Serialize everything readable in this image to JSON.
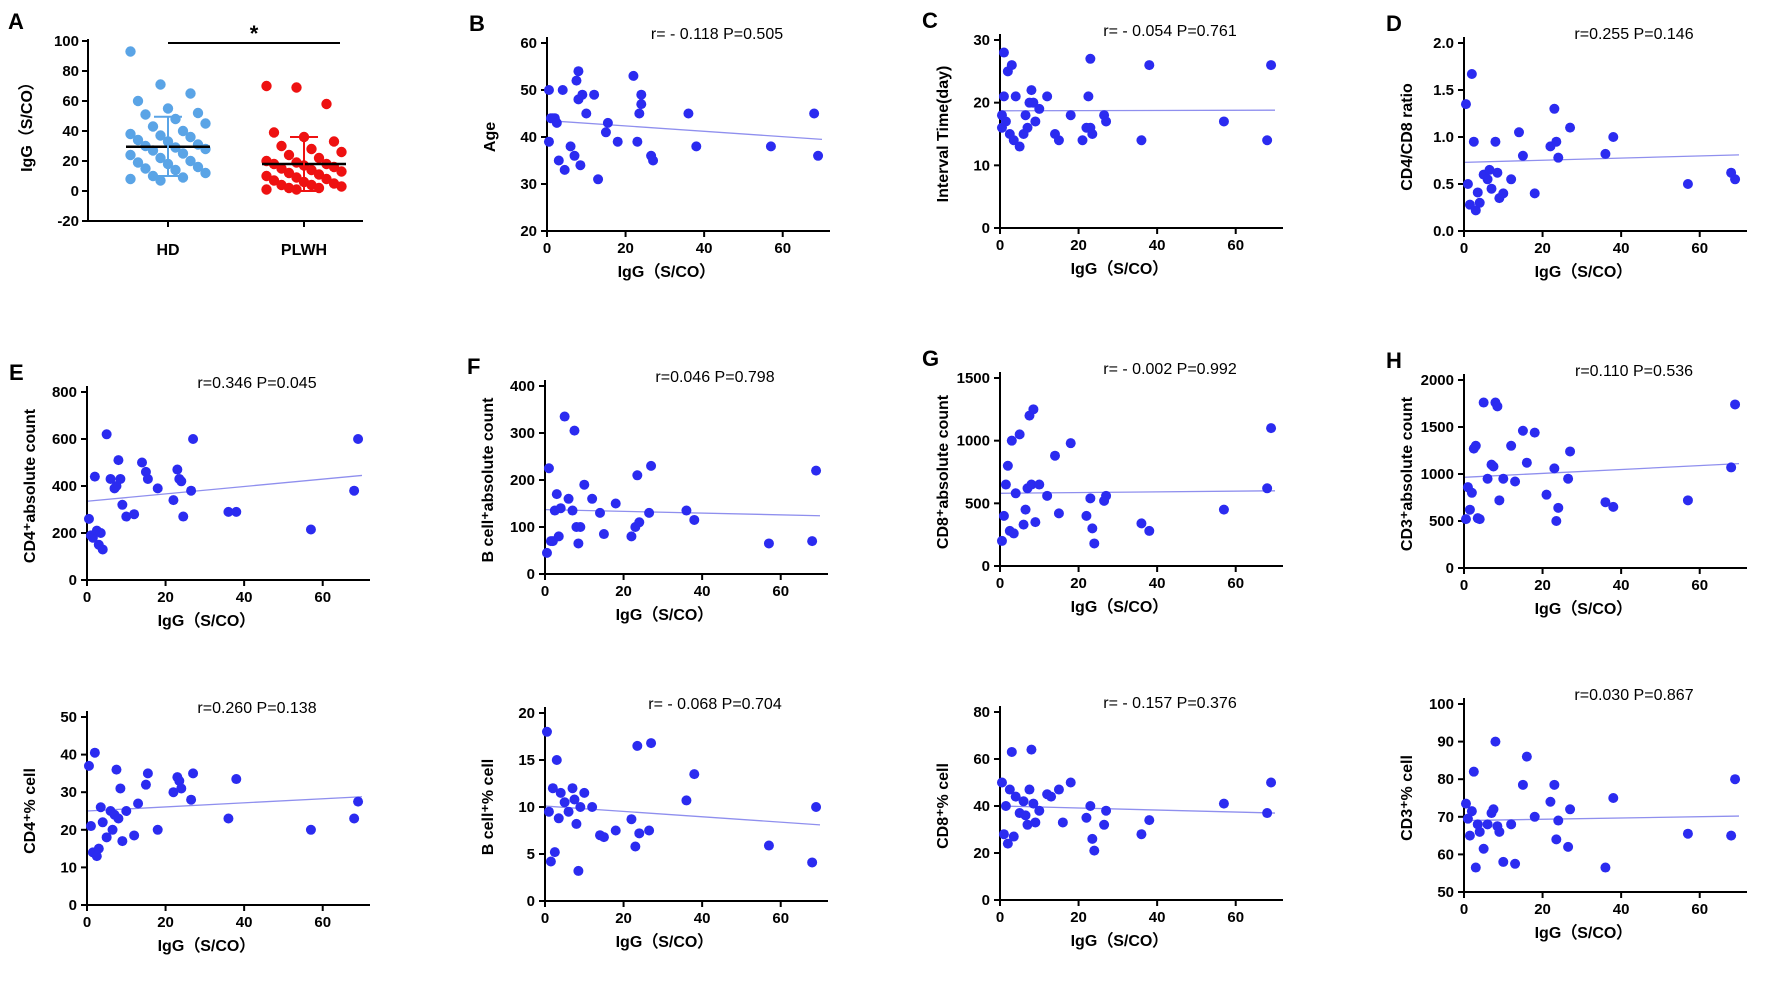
{
  "colors": {
    "hd": "#5aa4e6",
    "plwh": "#ee1111",
    "point": "#2b2bf0",
    "fit": "#8f8fee",
    "axis": "#000000"
  },
  "chart_data": [
    {
      "id": "A",
      "letter": "A",
      "type": "scatter",
      "title": "",
      "xlabel": "",
      "ylabel": "IgG（S/CO）",
      "ylim": [
        -20,
        100
      ],
      "yticks": [
        -20,
        0,
        20,
        40,
        60,
        80,
        100
      ],
      "categories": [
        "HD",
        "PLWH"
      ],
      "significance": "*",
      "series": [
        {
          "name": "HD",
          "mean": 29.5,
          "sd_low": 10,
          "sd_high": 49.5,
          "values": [
            93,
            71,
            65,
            60,
            55,
            52,
            51,
            48,
            45,
            43,
            40,
            38,
            37,
            36,
            34,
            33,
            31,
            30,
            29,
            28,
            27,
            25,
            24,
            22,
            20,
            19,
            18,
            16,
            15,
            14,
            12,
            10,
            9,
            8,
            7
          ]
        },
        {
          "name": "PLWH",
          "mean": 18,
          "sd_low": 0,
          "sd_high": 36,
          "values": [
            70,
            69,
            58,
            39,
            36,
            33,
            30,
            28,
            26,
            24,
            22,
            20,
            19,
            18,
            18,
            17,
            16,
            15,
            14,
            13,
            12,
            11,
            10,
            9,
            8,
            7,
            6,
            5,
            4,
            4,
            3,
            2,
            2,
            1,
            1
          ]
        }
      ]
    },
    {
      "id": "B",
      "letter": "B",
      "type": "scatter",
      "stat": "r= - 0.118  P=0.505",
      "xlabel": "IgG（S/CO）",
      "ylabel": "Age",
      "xlim": [
        0,
        70
      ],
      "ylim": [
        20,
        60
      ],
      "xticks": [
        0,
        20,
        40,
        60
      ],
      "yticks": [
        20,
        30,
        40,
        50,
        60
      ],
      "fit": [
        43.5,
        39.5
      ],
      "x": [
        0.5,
        0.5,
        1,
        1.5,
        2,
        2.5,
        3,
        4,
        4.5,
        6,
        7,
        7.5,
        8,
        8,
        8.5,
        9,
        10,
        12,
        13,
        15,
        15.5,
        18,
        22,
        23,
        23.5,
        24,
        24,
        26.5,
        27,
        36,
        38,
        57,
        68,
        69
      ],
      "y": [
        50,
        39,
        44,
        44,
        44,
        43,
        35,
        50,
        33,
        38,
        36,
        52,
        48,
        54,
        34,
        49,
        45,
        49,
        31,
        41,
        43,
        39,
        53,
        39,
        45,
        47,
        49,
        36,
        35,
        45,
        38,
        38,
        45,
        36
      ]
    },
    {
      "id": "C",
      "letter": "C",
      "type": "scatter",
      "stat": "r= - 0.054  P=0.761",
      "xlabel": "IgG（S/CO）",
      "ylabel": "Interval Time(day)",
      "xlim": [
        0,
        70
      ],
      "ylim": [
        0,
        30
      ],
      "xticks": [
        0,
        20,
        40,
        60
      ],
      "yticks": [
        0,
        10,
        20,
        30
      ],
      "fit": [
        18.7,
        18.8
      ],
      "x": [
        0.5,
        0.5,
        1,
        1,
        1.5,
        2,
        2.5,
        3,
        3.5,
        4,
        5,
        6,
        6.5,
        7,
        7.5,
        8,
        8.5,
        9,
        10,
        12,
        14,
        15,
        18,
        21,
        22,
        22.5,
        23,
        23,
        23.5,
        26.5,
        27,
        36,
        38,
        57,
        68,
        69
      ],
      "y": [
        18,
        16,
        28,
        21,
        17,
        25,
        15,
        26,
        14,
        21,
        13,
        15,
        18,
        16,
        20,
        22,
        20,
        17,
        19,
        21,
        15,
        14,
        18,
        14,
        16,
        21,
        16,
        27,
        15,
        18,
        17,
        14,
        26,
        17,
        14,
        26
      ]
    },
    {
      "id": "D",
      "letter": "D",
      "type": "scatter",
      "stat": "r=0.255  P=0.146",
      "xlabel": "IgG（S/CO）",
      "ylabel": "CD4/CD8 ratio",
      "xlim": [
        0,
        70
      ],
      "ylim": [
        0,
        2
      ],
      "xticks": [
        0,
        20,
        40,
        60
      ],
      "yticks": [
        "0.0",
        "0.5",
        "1.0",
        "1.5",
        "2.0"
      ],
      "fit": [
        0.73,
        0.81
      ],
      "x": [
        0.5,
        1,
        1.5,
        2,
        2.5,
        3,
        3.5,
        4,
        5,
        6,
        6.5,
        7,
        8,
        8.5,
        9,
        10,
        12,
        14,
        15,
        18,
        22,
        23,
        23.5,
        24,
        27,
        36,
        38,
        57,
        68,
        69
      ],
      "y": [
        1.35,
        0.5,
        0.28,
        1.67,
        0.95,
        0.22,
        0.41,
        0.3,
        0.6,
        0.55,
        0.65,
        0.45,
        0.95,
        0.62,
        0.35,
        0.4,
        0.55,
        1.05,
        0.8,
        0.4,
        0.9,
        1.3,
        0.95,
        0.78,
        1.1,
        0.82,
        1.0,
        0.5,
        0.62,
        0.55
      ]
    },
    {
      "id": "E1",
      "letter": "E",
      "type": "scatter",
      "stat": "r=0.346  P=0.045",
      "xlabel": "IgG（S/CO）",
      "ylabel": "CD4⁺absolute count",
      "xlim": [
        0,
        70
      ],
      "ylim": [
        0,
        800
      ],
      "xticks": [
        0,
        20,
        40,
        60
      ],
      "yticks": [
        0,
        200,
        400,
        600,
        800
      ],
      "fit": [
        335,
        445
      ],
      "x": [
        0.5,
        1,
        1.5,
        2,
        2.5,
        3,
        3.5,
        4,
        5,
        6,
        7,
        7.5,
        8,
        8.5,
        9,
        10,
        12,
        14,
        15,
        15.5,
        18,
        22,
        23,
        23.5,
        24,
        24.5,
        26.5,
        27,
        36,
        38,
        57,
        68,
        69
      ],
      "y": [
        260,
        190,
        180,
        440,
        210,
        150,
        200,
        130,
        620,
        430,
        390,
        400,
        510,
        430,
        320,
        270,
        280,
        500,
        460,
        430,
        390,
        340,
        470,
        430,
        420,
        270,
        380,
        600,
        290,
        290,
        215,
        380,
        600
      ]
    },
    {
      "id": "E2",
      "letter": "",
      "type": "scatter",
      "stat": "r=0.260  P=0.138",
      "xlabel": "IgG（S/CO）",
      "ylabel": "CD4⁺% cell",
      "xlim": [
        0,
        70
      ],
      "ylim": [
        0,
        50
      ],
      "xticks": [
        0,
        20,
        40,
        60
      ],
      "yticks": [
        0,
        10,
        20,
        30,
        40,
        50
      ],
      "fit": [
        25,
        28.8
      ],
      "x": [
        0.5,
        1,
        1.5,
        2,
        2.5,
        3,
        3.5,
        4,
        5,
        6,
        6.5,
        7,
        7.5,
        8,
        8.5,
        9,
        10,
        12,
        13,
        15,
        15.5,
        18,
        22,
        23,
        23.5,
        24,
        26.5,
        27,
        36,
        38,
        57,
        68,
        69
      ],
      "y": [
        37,
        21,
        14,
        40.5,
        13,
        15,
        26,
        22,
        18,
        25,
        20,
        24,
        36,
        23,
        31,
        17,
        25,
        18.5,
        27,
        32,
        35,
        20,
        30,
        34,
        33,
        31,
        28,
        35,
        23,
        33.5,
        20,
        23,
        27.5
      ]
    },
    {
      "id": "F1",
      "letter": "F",
      "type": "scatter",
      "stat": "r=0.046  P=0.798",
      "xlabel": "IgG（S/CO）",
      "ylabel": "B cell⁺absolute count",
      "xlim": [
        0,
        70
      ],
      "ylim": [
        0,
        400
      ],
      "xticks": [
        0,
        20,
        40,
        60
      ],
      "yticks": [
        0,
        100,
        200,
        300,
        400
      ],
      "fit": [
        137,
        124
      ],
      "x": [
        0.5,
        1,
        1.5,
        2,
        2.5,
        3,
        3.5,
        4,
        5,
        6,
        7,
        7.5,
        8,
        8.5,
        9,
        10,
        12,
        14,
        15,
        18,
        22,
        23,
        23.5,
        24,
        26.5,
        27,
        36,
        38,
        57,
        68,
        69
      ],
      "y": [
        45,
        225,
        70,
        70,
        135,
        170,
        80,
        140,
        335,
        160,
        135,
        305,
        100,
        65,
        100,
        190,
        160,
        130,
        85,
        150,
        80,
        100,
        210,
        110,
        130,
        230,
        135,
        115,
        65,
        70,
        220
      ]
    },
    {
      "id": "F2",
      "letter": "",
      "type": "scatter",
      "stat": "r= - 0.068  P=0.704",
      "xlabel": "IgG（S/CO）",
      "ylabel": "B cell⁺% cell",
      "xlim": [
        0,
        70
      ],
      "ylim": [
        0,
        20
      ],
      "xticks": [
        0,
        20,
        40,
        60
      ],
      "yticks": [
        0,
        5,
        10,
        15,
        20
      ],
      "fit": [
        10.1,
        8.1
      ],
      "x": [
        0.5,
        1,
        1.5,
        2,
        2.5,
        3,
        3.5,
        4,
        5,
        6,
        7,
        7.5,
        8,
        8.5,
        9,
        10,
        12,
        14,
        15,
        18,
        22,
        23,
        23.5,
        24,
        26.5,
        27,
        36,
        38,
        57,
        68,
        69
      ],
      "y": [
        18,
        9.5,
        4.2,
        12,
        5.2,
        15,
        8.8,
        11.5,
        10.5,
        9.5,
        12,
        10.8,
        8.2,
        3.2,
        10,
        11.5,
        10,
        7,
        6.8,
        7.5,
        8.7,
        5.8,
        16.5,
        7.2,
        7.5,
        16.8,
        10.7,
        13.5,
        5.9,
        4.1,
        10
      ]
    },
    {
      "id": "G1",
      "letter": "G",
      "type": "scatter",
      "stat": "r= - 0.002  P=0.992",
      "xlabel": "IgG（S/CO）",
      "ylabel": "CD8⁺absolute count",
      "xlim": [
        0,
        70
      ],
      "ylim": [
        0,
        1500
      ],
      "xticks": [
        0,
        20,
        40,
        60
      ],
      "yticks": [
        0,
        500,
        1000,
        1500
      ],
      "fit": [
        580,
        600
      ],
      "x": [
        0.5,
        1,
        1.5,
        2,
        2.5,
        3,
        3.5,
        4,
        5,
        6,
        6.5,
        7,
        7.5,
        8,
        8.5,
        9,
        10,
        12,
        14,
        15,
        18,
        22,
        23,
        23.5,
        24,
        26.5,
        27,
        36,
        38,
        57,
        68,
        69
      ],
      "y": [
        200,
        400,
        650,
        800,
        280,
        1000,
        260,
        580,
        1050,
        330,
        450,
        620,
        1200,
        650,
        1250,
        350,
        650,
        560,
        880,
        420,
        980,
        400,
        540,
        300,
        180,
        520,
        560,
        340,
        280,
        450,
        620,
        1100
      ]
    },
    {
      "id": "G2",
      "letter": "",
      "type": "scatter",
      "stat": "r= - 0.157  P=0.376",
      "xlabel": "IgG（S/CO）",
      "ylabel": "CD8⁺% cell",
      "xlim": [
        0,
        70
      ],
      "ylim": [
        0,
        80
      ],
      "xticks": [
        0,
        20,
        40,
        60
      ],
      "yticks": [
        0,
        20,
        40,
        60,
        80
      ],
      "fit": [
        40,
        37
      ],
      "x": [
        0.5,
        1,
        1.5,
        2,
        2.5,
        3,
        3.5,
        4,
        5,
        6,
        6.5,
        7,
        7.5,
        8,
        8.5,
        9,
        10,
        12,
        13,
        15,
        16,
        18,
        22,
        23,
        23.5,
        24,
        26.5,
        27,
        36,
        38,
        57,
        68,
        69
      ],
      "y": [
        50,
        28,
        40,
        24,
        47,
        63,
        27,
        44,
        37,
        42,
        36,
        32,
        47,
        64,
        41,
        33,
        38,
        45,
        44,
        47,
        33,
        50,
        35,
        40,
        26,
        21,
        32,
        38,
        28,
        34,
        41,
        37,
        50
      ]
    },
    {
      "id": "H1",
      "letter": "H",
      "type": "scatter",
      "stat": "r=0.110  P=0.536",
      "xlabel": "IgG（S/CO）",
      "ylabel": "CD3⁺absolute count",
      "xlim": [
        0,
        70
      ],
      "ylim": [
        0,
        2000
      ],
      "xticks": [
        0,
        20,
        40,
        60
      ],
      "yticks": [
        0,
        500,
        1000,
        1500,
        2000
      ],
      "fit": [
        965,
        1110
      ],
      "x": [
        0.5,
        1,
        1.5,
        2,
        2.5,
        3,
        3.5,
        4,
        5,
        6,
        7,
        7.5,
        8,
        8.5,
        9,
        10,
        12,
        13,
        15,
        16,
        18,
        21,
        23,
        23.5,
        24,
        26.5,
        27,
        36,
        38,
        57,
        68,
        69
      ],
      "y": [
        520,
        860,
        620,
        800,
        1270,
        1300,
        530,
        520,
        1760,
        950,
        1100,
        1080,
        1760,
        1720,
        720,
        950,
        1300,
        920,
        1460,
        1120,
        1440,
        780,
        1060,
        500,
        640,
        950,
        1240,
        700,
        650,
        720,
        1070,
        1740
      ]
    },
    {
      "id": "H2",
      "letter": "",
      "type": "scatter",
      "stat": "r=0.030  P=0.867",
      "xlabel": "IgG（S/CO）",
      "ylabel": "CD3⁺% cell",
      "xlim": [
        0,
        70
      ],
      "ylim": [
        50,
        100
      ],
      "xticks": [
        0,
        20,
        40,
        60
      ],
      "yticks": [
        50,
        60,
        70,
        80,
        90,
        100
      ],
      "fit": [
        69,
        70.2
      ],
      "x": [
        0.5,
        1,
        1.5,
        2,
        2.5,
        3,
        3.5,
        4,
        5,
        6,
        7,
        7.5,
        8,
        8.5,
        9,
        10,
        12,
        13,
        15,
        16,
        18,
        22,
        23,
        23.5,
        24,
        26.5,
        27,
        36,
        38,
        57,
        68,
        69
      ],
      "y": [
        73.5,
        69.5,
        65,
        71.5,
        82,
        56.5,
        68,
        66,
        61.5,
        68,
        71,
        72,
        90,
        67.5,
        66,
        58,
        68,
        57.5,
        78.5,
        86,
        70,
        74,
        78.5,
        64,
        69,
        62,
        72,
        56.5,
        75,
        65.5,
        65,
        80
      ]
    }
  ]
}
